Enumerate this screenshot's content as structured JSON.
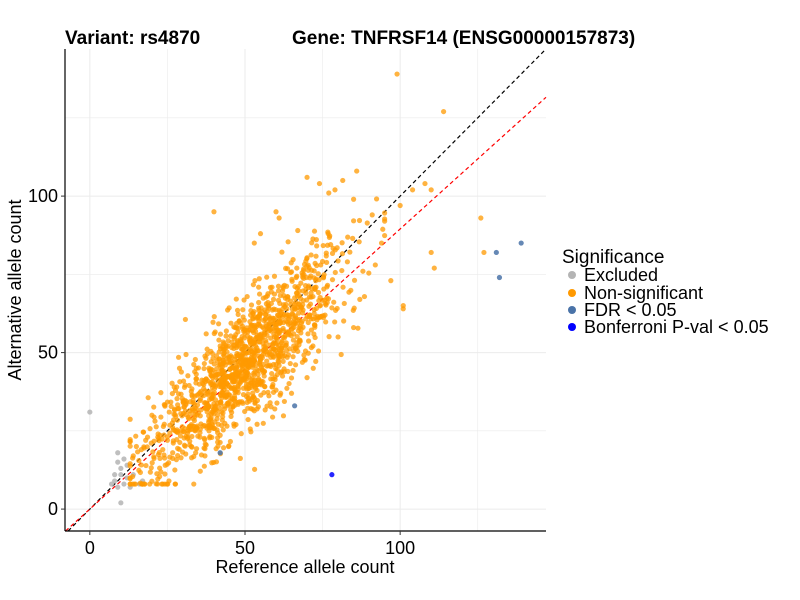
{
  "chart_data": {
    "type": "scatter",
    "title_left": "Variant: rs4870",
    "title_right": "Gene: TNFRSF14 (ENSG00000157873)",
    "xlabel": "Reference allele count",
    "ylabel": "Alternative allele count",
    "xlim": [
      -8,
      147
    ],
    "ylim": [
      -7,
      147
    ],
    "xticks": [
      0,
      50,
      100
    ],
    "yticks": [
      0,
      50,
      100
    ],
    "grid": true,
    "legend": {
      "title": "Significance",
      "placement": "right",
      "entries": [
        {
          "label": "Excluded",
          "color": "#b4b4b4"
        },
        {
          "label": "Non-significant",
          "color": "#ff9900"
        },
        {
          "label": "FDR < 0.05",
          "color": "#4a73a8"
        },
        {
          "label": "Bonferroni P-val < 0.05",
          "color": "#0000ff"
        }
      ]
    },
    "reference_lines": [
      {
        "name": "identity",
        "slope": 1.0,
        "intercept": 0,
        "color": "#000000",
        "style": "dashed"
      },
      {
        "name": "fit",
        "slope": 0.895,
        "intercept": 0,
        "color": "#ff0000",
        "style": "dashed"
      }
    ],
    "series": [
      {
        "category": "Excluded",
        "color": "#b4b4b4",
        "points": [
          [
            0,
            31
          ],
          [
            8,
            9
          ],
          [
            9,
            7
          ],
          [
            9,
            15
          ],
          [
            10,
            11
          ],
          [
            10,
            13
          ],
          [
            10,
            2
          ],
          [
            11,
            8
          ],
          [
            12,
            10
          ],
          [
            13,
            7
          ],
          [
            7,
            8
          ],
          [
            8,
            11
          ],
          [
            11,
            16
          ],
          [
            16,
            8
          ],
          [
            17,
            9
          ],
          [
            12,
            14
          ],
          [
            9,
            18
          ],
          [
            14,
            11
          ]
        ]
      },
      {
        "category": "Non-significant",
        "color": "#ff9900",
        "seed": 12345,
        "n_generated": 1400,
        "points": [
          [
            99,
            139
          ],
          [
            114,
            127
          ],
          [
            126,
            93
          ],
          [
            127,
            82
          ],
          [
            108,
            104
          ],
          [
            110,
            102
          ],
          [
            88,
            76
          ],
          [
            92,
            78
          ],
          [
            101,
            64
          ],
          [
            101,
            65
          ],
          [
            110,
            82
          ],
          [
            111,
            77
          ],
          [
            83,
            79
          ],
          [
            95,
            92
          ],
          [
            100,
            97
          ],
          [
            70,
            106
          ],
          [
            79,
            102
          ],
          [
            60,
            95
          ],
          [
            61,
            93
          ],
          [
            77,
            101
          ],
          [
            74,
            104
          ],
          [
            86,
            108
          ],
          [
            91,
            94
          ],
          [
            94,
            85
          ],
          [
            87,
            67
          ],
          [
            85,
            99
          ],
          [
            97,
            73
          ],
          [
            104,
            102
          ],
          [
            67,
            89
          ],
          [
            55,
            88
          ],
          [
            53,
            85
          ],
          [
            20,
            30
          ],
          [
            22,
            24
          ],
          [
            18,
            22
          ],
          [
            15,
            20
          ],
          [
            14,
            17
          ],
          [
            40,
            95
          ],
          [
            25,
            22
          ],
          [
            60,
            38
          ],
          [
            65,
            37
          ],
          [
            70,
            42
          ],
          [
            72,
            45
          ],
          [
            80,
            55
          ],
          [
            85,
            58
          ]
        ]
      },
      {
        "category": "FDR < 0.05",
        "color": "#4a73a8",
        "points": [
          [
            131,
            82
          ],
          [
            132,
            74
          ],
          [
            139,
            85
          ],
          [
            66,
            33
          ],
          [
            42,
            18
          ]
        ]
      },
      {
        "category": "Bonferroni P-val < 0.05",
        "color": "#0000ff",
        "points": [
          [
            78,
            11
          ]
        ]
      }
    ]
  }
}
